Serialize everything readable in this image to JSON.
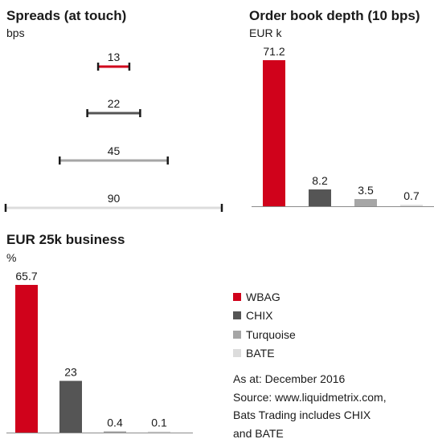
{
  "colors": {
    "WBAG": "#d0021b",
    "CHIX": "#555555",
    "Turquoise": "#a6a6a6",
    "BATE": "#dcdcdc",
    "axis": "#8c8c8c",
    "caps": "#1a1a1a"
  },
  "chart_data": [
    {
      "type": "range",
      "title": "Spreads (at touch)",
      "unit": "bps",
      "series": [
        {
          "name": "WBAG",
          "value": 13
        },
        {
          "name": "CHIX",
          "value": 22
        },
        {
          "name": "Turquoise",
          "value": 45
        },
        {
          "name": "BATE",
          "value": 90
        }
      ]
    },
    {
      "type": "bar",
      "title": "Order book depth  (10 bps)",
      "unit": "EUR k",
      "categories": [
        "WBAG",
        "CHIX",
        "Turquoise",
        "BATE"
      ],
      "values": [
        71.2,
        8.2,
        3.5,
        0.7
      ],
      "value_labels": [
        "71.2",
        "8.2",
        "3.5",
        "0.7"
      ],
      "ylim": [
        0,
        71.2
      ]
    },
    {
      "type": "bar",
      "title": "EUR 25k business",
      "unit": "%",
      "categories": [
        "WBAG",
        "CHIX",
        "Turquoise",
        "BATE"
      ],
      "values": [
        65.7,
        23,
        0.4,
        0.1
      ],
      "value_labels": [
        "65.7",
        "23",
        "0.4",
        "0.1"
      ],
      "ylim": [
        0,
        65.7
      ]
    }
  ],
  "legend": [
    {
      "name": "WBAG",
      "color": "#d0021b"
    },
    {
      "name": "CHIX",
      "color": "#555555"
    },
    {
      "name": "Turquoise",
      "color": "#a6a6a6"
    },
    {
      "name": "BATE",
      "color": "#dcdcdc"
    }
  ],
  "footnote": [
    "As at: December 2016",
    "Source: www.liquidmetrix.com,",
    "Bats Trading includes CHIX",
    "and BATE"
  ]
}
